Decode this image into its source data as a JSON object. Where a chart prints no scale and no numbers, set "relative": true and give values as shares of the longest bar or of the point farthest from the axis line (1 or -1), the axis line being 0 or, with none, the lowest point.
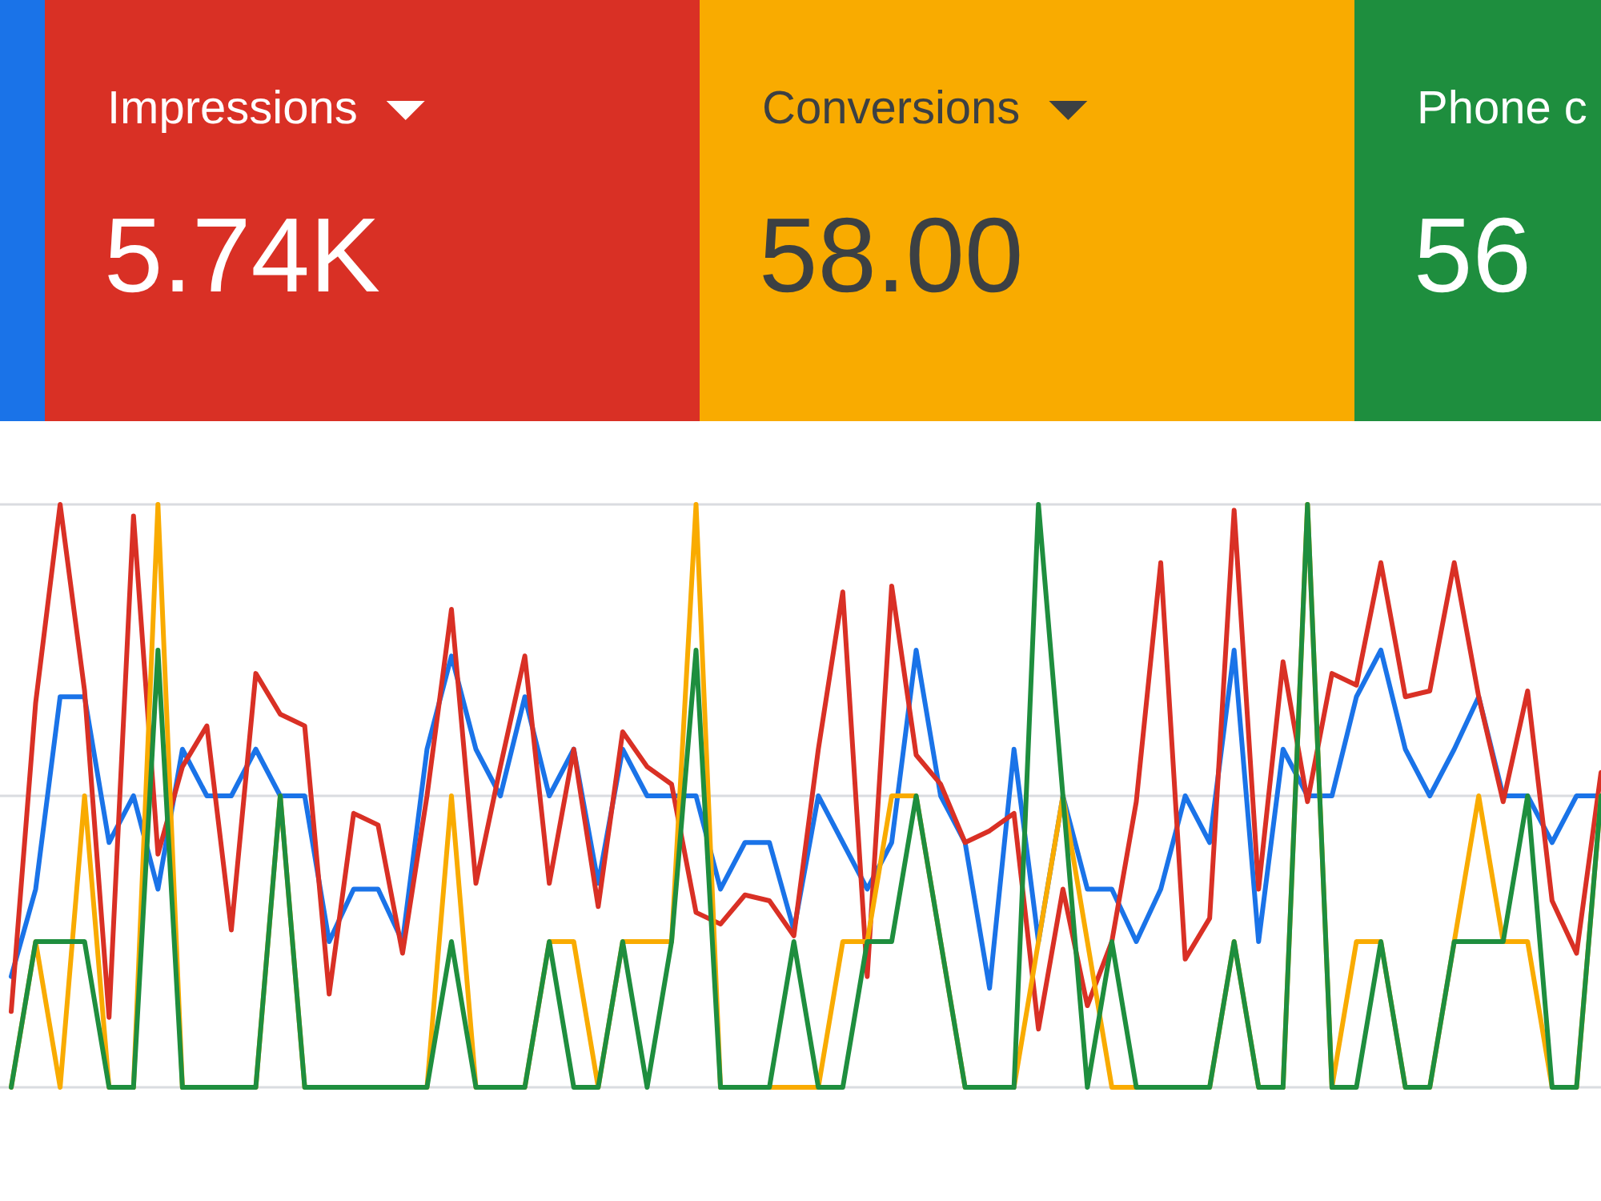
{
  "chart_data": {
    "type": "line",
    "relative": true,
    "ref_lines": [
      {
        "axis": "y",
        "value": 0,
        "color": "#dadce0"
      },
      {
        "axis": "y",
        "value": 0.5,
        "color": "#dadce0"
      },
      {
        "axis": "y",
        "value": 1,
        "color": "#dadce0"
      }
    ],
    "categories": [
      null,
      null,
      null,
      null,
      null,
      null,
      null,
      null,
      null,
      null,
      null,
      null,
      null,
      null,
      null,
      null,
      null,
      null,
      null,
      null,
      null,
      null,
      null,
      null,
      null,
      null,
      null,
      null,
      null,
      null,
      null,
      null,
      null,
      null,
      null,
      null,
      null,
      null,
      null,
      null,
      null,
      null,
      null,
      null,
      null,
      null,
      null,
      null,
      null,
      null,
      null,
      null,
      null,
      null,
      null,
      null,
      null,
      null,
      null,
      null,
      null,
      null,
      null,
      null,
      null,
      null
    ],
    "annotations": [
      "Impressions",
      "5.74K",
      "Conversions",
      "58.00",
      "Phone c",
      "56"
    ],
    "series": [
      {
        "color": "#1a73e8",
        "values": [
          0.19,
          0.34,
          0.67,
          0.67,
          0.42,
          0.5,
          0.34,
          0.58,
          0.5,
          0.5,
          0.58,
          0.5,
          0.5,
          0.25,
          0.34,
          0.34,
          0.25,
          0.58,
          0.74,
          0.58,
          0.5,
          0.67,
          0.5,
          0.58,
          0.35,
          0.58,
          0.5,
          0.5,
          0.5,
          0.34,
          0.42,
          0.42,
          0.27,
          0.5,
          0.42,
          0.34,
          0.42,
          0.75,
          0.5,
          0.42,
          0.17,
          0.58,
          0.25,
          0.5,
          0.34,
          0.34,
          0.25,
          0.34,
          0.5,
          0.42,
          0.75,
          0.25,
          0.58,
          0.5,
          0.5,
          0.67,
          0.75,
          0.58,
          0.5,
          0.58,
          0.67,
          0.5,
          0.5,
          0.42,
          0.5,
          0.5
        ]
      },
      {
        "color": "#d93025",
        "values": [
          0.13,
          0.66,
          1.0,
          0.68,
          0.12,
          0.98,
          0.4,
          0.55,
          0.62,
          0.27,
          0.71,
          0.64,
          0.62,
          0.16,
          0.47,
          0.45,
          0.23,
          0.5,
          0.82,
          0.35,
          0.55,
          0.74,
          0.35,
          0.58,
          0.31,
          0.61,
          0.55,
          0.52,
          0.3,
          0.28,
          0.33,
          0.32,
          0.26,
          0.58,
          0.85,
          0.19,
          0.86,
          0.57,
          0.52,
          0.42,
          0.44,
          0.47,
          0.1,
          0.34,
          0.14,
          0.25,
          0.49,
          0.9,
          0.22,
          0.29,
          0.99,
          0.34,
          0.73,
          0.49,
          0.71,
          0.69,
          0.9,
          0.67,
          0.68,
          0.9,
          0.67,
          0.49,
          0.68,
          0.32,
          0.23,
          0.54
        ]
      },
      {
        "color": "#f9ab00",
        "values": [
          0,
          0.25,
          0,
          0.5,
          0,
          0,
          1,
          0,
          0,
          0,
          0,
          0.5,
          0,
          0,
          0,
          0,
          0,
          0,
          0.5,
          0,
          0,
          0,
          0.25,
          0.25,
          0,
          0.25,
          0.25,
          0.25,
          1,
          0,
          0,
          0,
          0,
          0,
          0.25,
          0.25,
          0.5,
          0.5,
          0.25,
          0,
          0,
          0,
          0.25,
          0.5,
          0.25,
          0,
          0,
          0,
          0,
          0,
          0.25,
          0,
          0,
          1,
          0,
          0.25,
          0.25,
          0,
          0,
          0.25,
          0.5,
          0.25,
          0.25,
          0,
          0,
          0.5
        ]
      },
      {
        "color": "#1e8e3e",
        "values": [
          0,
          0.25,
          0.25,
          0.25,
          0,
          0,
          0.75,
          0,
          0,
          0,
          0,
          0.5,
          0,
          0,
          0,
          0,
          0,
          0,
          0.25,
          0,
          0,
          0,
          0.25,
          0,
          0,
          0.25,
          0,
          0.25,
          0.75,
          0,
          0,
          0,
          0.25,
          0,
          0,
          0.25,
          0.25,
          0.5,
          0.25,
          0,
          0,
          0,
          1,
          0.5,
          0,
          0.25,
          0,
          0,
          0,
          0,
          0.25,
          0,
          0,
          1,
          0,
          0,
          0.25,
          0,
          0,
          0.25,
          0.25,
          0.25,
          0.5,
          0,
          0,
          0.5
        ]
      }
    ]
  }
}
